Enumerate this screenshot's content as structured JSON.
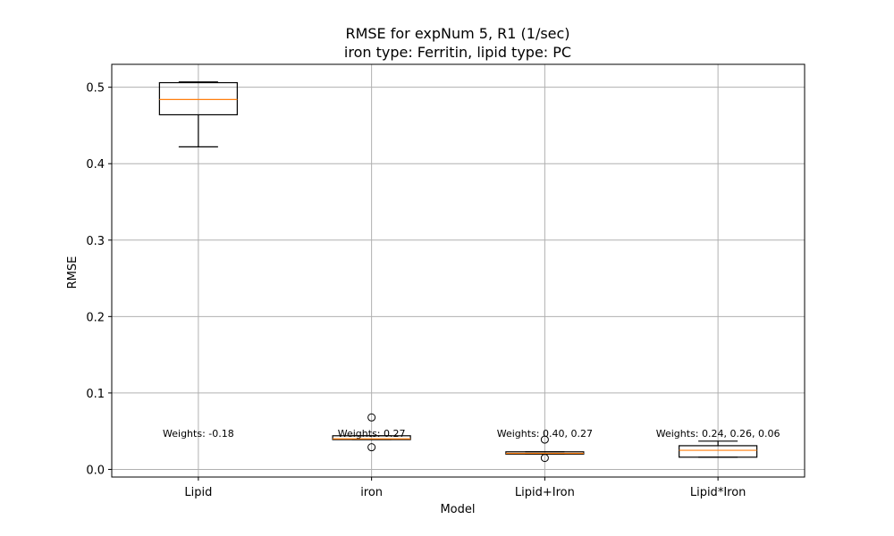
{
  "chart_data": {
    "type": "box",
    "title_line1": "RMSE for expNum 5, R1 (1/sec)",
    "title_line2": "iron type: Ferritin, lipid type: PC",
    "xlabel": "Model",
    "ylabel": "RMSE",
    "ylim": [
      -0.01,
      0.53
    ],
    "yticks": [
      0.0,
      0.1,
      0.2,
      0.3,
      0.4,
      0.5
    ],
    "ytick_labels": [
      "0.0",
      "0.1",
      "0.2",
      "0.3",
      "0.4",
      "0.5"
    ],
    "grid": true,
    "categories": [
      "Lipid",
      "iron",
      "Lipid+Iron",
      "Lipid*Iron"
    ],
    "boxes": [
      {
        "whisker_low": 0.422,
        "q1": 0.464,
        "median": 0.484,
        "q3": 0.506,
        "whisker_high": 0.507,
        "fliers": []
      },
      {
        "whisker_low": 0.039,
        "q1": 0.039,
        "median": 0.04,
        "q3": 0.044,
        "whisker_high": 0.044,
        "fliers": [
          0.068,
          0.029
        ]
      },
      {
        "whisker_low": 0.02,
        "q1": 0.02,
        "median": 0.021,
        "q3": 0.023,
        "whisker_high": 0.023,
        "fliers": [
          0.039,
          0.015
        ]
      },
      {
        "whisker_low": 0.016,
        "q1": 0.016,
        "median": 0.025,
        "q3": 0.031,
        "whisker_high": 0.037,
        "fliers": []
      }
    ],
    "annotations": [
      {
        "category": "Lipid",
        "text": "Weights: -0.18",
        "y": 0.047
      },
      {
        "category": "iron",
        "text": "Weights: 0.27",
        "y": 0.047
      },
      {
        "category": "Lipid+Iron",
        "text": "Weights: 0.40, 0.27",
        "y": 0.047
      },
      {
        "category": "Lipid*Iron",
        "text": "Weights: 0.24, 0.26, 0.06",
        "y": 0.047
      }
    ],
    "colors": {
      "box": "#000000",
      "median": "#ff7f0e",
      "grid": "#b0b0b0"
    }
  }
}
